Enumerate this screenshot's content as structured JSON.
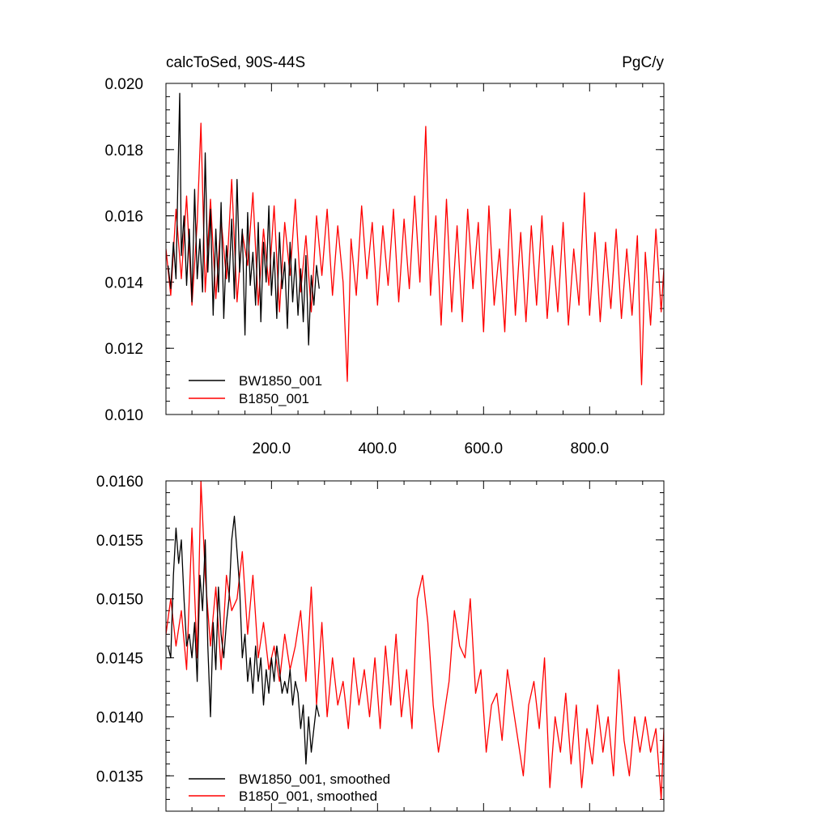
{
  "chart_data": [
    {
      "type": "line",
      "title": "calcToSed, 90S-44S",
      "units": "PgC/y",
      "xlim": [
        1,
        940
      ],
      "ylim": [
        0.01,
        0.02
      ],
      "xticks": [
        200,
        400,
        600,
        800
      ],
      "xtick_labels": [
        "200.0",
        "400.0",
        "600.0",
        "800.0"
      ],
      "yticks": [
        0.01,
        0.012,
        0.014,
        0.016,
        0.018,
        0.02
      ],
      "ytick_labels": [
        "0.010",
        "0.012",
        "0.014",
        "0.016",
        "0.018",
        "0.020"
      ],
      "legend_position": "bottom-left",
      "series": [
        {
          "name": "BW1850_001",
          "color": "#000000",
          "x": [
            5,
            10,
            15,
            20,
            24,
            27,
            30,
            35,
            40,
            45,
            50,
            55,
            60,
            65,
            70,
            75,
            80,
            85,
            90,
            95,
            100,
            105,
            110,
            115,
            120,
            125,
            130,
            135,
            140,
            145,
            150,
            155,
            160,
            165,
            170,
            175,
            180,
            185,
            190,
            195,
            200,
            205,
            210,
            215,
            220,
            225,
            230,
            235,
            240,
            245,
            250,
            255,
            260,
            265,
            270,
            275,
            280,
            285,
            290
          ],
          "values": [
            0.0145,
            0.0138,
            0.0152,
            0.0141,
            0.0175,
            0.0197,
            0.0148,
            0.016,
            0.0139,
            0.0156,
            0.0134,
            0.0168,
            0.0141,
            0.0153,
            0.0137,
            0.0179,
            0.0143,
            0.0162,
            0.013,
            0.0156,
            0.0137,
            0.0164,
            0.0129,
            0.0151,
            0.014,
            0.0159,
            0.0135,
            0.0171,
            0.0143,
            0.0156,
            0.0124,
            0.0161,
            0.0139,
            0.0149,
            0.0133,
            0.0158,
            0.0128,
            0.0152,
            0.014,
            0.0163,
            0.0136,
            0.0149,
            0.0129,
            0.0155,
            0.0138,
            0.0146,
            0.0126,
            0.0152,
            0.0134,
            0.0147,
            0.013,
            0.0144,
            0.0128,
            0.0148,
            0.0121,
            0.0142,
            0.0133,
            0.0145,
            0.0138
          ]
        },
        {
          "name": "B1850_001",
          "color": "#ff0000",
          "x": [
            1,
            10,
            20,
            30,
            40,
            50,
            60,
            67,
            75,
            85,
            95,
            105,
            115,
            125,
            135,
            145,
            155,
            165,
            175,
            185,
            195,
            205,
            215,
            225,
            235,
            245,
            255,
            265,
            275,
            285,
            295,
            305,
            315,
            325,
            335,
            343,
            350,
            360,
            370,
            380,
            390,
            400,
            410,
            420,
            430,
            440,
            450,
            460,
            470,
            480,
            491,
            500,
            510,
            520,
            530,
            540,
            550,
            560,
            570,
            580,
            590,
            600,
            610,
            620,
            630,
            640,
            650,
            660,
            670,
            680,
            690,
            700,
            710,
            720,
            730,
            740,
            750,
            760,
            770,
            780,
            790,
            800,
            810,
            820,
            830,
            840,
            850,
            860,
            870,
            880,
            890,
            898,
            905,
            915,
            925,
            935,
            940
          ],
          "values": [
            0.015,
            0.0136,
            0.0162,
            0.0141,
            0.0166,
            0.0133,
            0.0158,
            0.0188,
            0.0137,
            0.0165,
            0.0135,
            0.0159,
            0.0141,
            0.0171,
            0.0134,
            0.0155,
            0.0145,
            0.0167,
            0.0133,
            0.0156,
            0.0139,
            0.0163,
            0.0131,
            0.0158,
            0.0142,
            0.0165,
            0.0137,
            0.0154,
            0.0131,
            0.016,
            0.0142,
            0.0162,
            0.0136,
            0.0157,
            0.014,
            0.011,
            0.0153,
            0.0136,
            0.0163,
            0.0141,
            0.0158,
            0.0133,
            0.0157,
            0.0139,
            0.0162,
            0.0134,
            0.0159,
            0.0138,
            0.0166,
            0.014,
            0.0187,
            0.0136,
            0.016,
            0.0127,
            0.0165,
            0.0131,
            0.0157,
            0.0128,
            0.0162,
            0.0138,
            0.0158,
            0.0125,
            0.0163,
            0.0133,
            0.015,
            0.0125,
            0.0162,
            0.013,
            0.0155,
            0.0128,
            0.0157,
            0.0133,
            0.016,
            0.0129,
            0.0151,
            0.0131,
            0.0158,
            0.0127,
            0.015,
            0.0133,
            0.0167,
            0.013,
            0.0155,
            0.0128,
            0.0152,
            0.0132,
            0.0156,
            0.0129,
            0.015,
            0.013,
            0.0154,
            0.0109,
            0.0149,
            0.0127,
            0.0156,
            0.0131,
            0.0144
          ]
        }
      ]
    },
    {
      "type": "line",
      "xlim": [
        1,
        940
      ],
      "ylim": [
        0.0132,
        0.016
      ],
      "xticks": [
        200,
        400,
        600,
        800
      ],
      "yticks": [
        0.0135,
        0.014,
        0.0145,
        0.015,
        0.0155,
        0.016
      ],
      "ytick_labels": [
        "0.0135",
        "0.0140",
        "0.0145",
        "0.0150",
        "0.0155",
        "0.0160"
      ],
      "legend_position": "bottom-left",
      "series": [
        {
          "name": "BW1850_001, smoothed",
          "color": "#000000",
          "x": [
            5,
            10,
            15,
            20,
            25,
            30,
            35,
            40,
            45,
            50,
            55,
            60,
            65,
            70,
            75,
            80,
            85,
            90,
            95,
            100,
            105,
            110,
            115,
            120,
            125,
            130,
            135,
            140,
            145,
            150,
            155,
            160,
            165,
            170,
            175,
            180,
            185,
            190,
            195,
            200,
            205,
            210,
            215,
            220,
            225,
            230,
            235,
            240,
            245,
            250,
            255,
            260,
            265,
            270,
            275,
            280,
            285,
            290
          ],
          "values": [
            0.0146,
            0.0145,
            0.0152,
            0.0156,
            0.0153,
            0.0155,
            0.015,
            0.0146,
            0.0147,
            0.0145,
            0.0148,
            0.0143,
            0.0152,
            0.0149,
            0.0155,
            0.0146,
            0.014,
            0.0148,
            0.0144,
            0.0151,
            0.0147,
            0.0145,
            0.0148,
            0.015,
            0.0155,
            0.0157,
            0.0154,
            0.0151,
            0.0145,
            0.0147,
            0.0143,
            0.0145,
            0.0142,
            0.0146,
            0.0143,
            0.0145,
            0.0141,
            0.0144,
            0.0142,
            0.0145,
            0.0143,
            0.0146,
            0.0144,
            0.0142,
            0.0143,
            0.0142,
            0.0144,
            0.0141,
            0.0143,
            0.0142,
            0.0139,
            0.0141,
            0.0136,
            0.014,
            0.0137,
            0.0139,
            0.0141,
            0.014
          ]
        },
        {
          "name": "B1850_001, smoothed",
          "color": "#ff0000",
          "x": [
            1,
            10,
            20,
            30,
            40,
            50,
            60,
            67,
            75,
            85,
            95,
            105,
            115,
            125,
            135,
            145,
            155,
            165,
            175,
            185,
            195,
            205,
            215,
            225,
            235,
            245,
            255,
            265,
            275,
            285,
            295,
            305,
            315,
            325,
            335,
            345,
            355,
            365,
            375,
            385,
            395,
            405,
            415,
            425,
            435,
            445,
            455,
            465,
            475,
            485,
            495,
            505,
            515,
            525,
            535,
            545,
            555,
            565,
            575,
            585,
            595,
            605,
            615,
            625,
            635,
            645,
            655,
            665,
            675,
            685,
            695,
            705,
            715,
            725,
            735,
            745,
            755,
            765,
            775,
            785,
            795,
            805,
            815,
            825,
            835,
            845,
            855,
            865,
            875,
            885,
            895,
            905,
            915,
            925,
            935,
            940
          ],
          "values": [
            0.0147,
            0.015,
            0.0146,
            0.0149,
            0.0144,
            0.0156,
            0.0145,
            0.016,
            0.0152,
            0.0146,
            0.0151,
            0.0144,
            0.0152,
            0.0149,
            0.015,
            0.0154,
            0.0147,
            0.0152,
            0.0145,
            0.0148,
            0.0144,
            0.0146,
            0.0143,
            0.0147,
            0.0144,
            0.0146,
            0.0149,
            0.0143,
            0.0151,
            0.0141,
            0.0148,
            0.014,
            0.0145,
            0.0141,
            0.0143,
            0.0139,
            0.0145,
            0.0141,
            0.0144,
            0.014,
            0.0145,
            0.0139,
            0.0146,
            0.0141,
            0.0147,
            0.014,
            0.0144,
            0.0139,
            0.015,
            0.0152,
            0.0148,
            0.0141,
            0.0137,
            0.014,
            0.0143,
            0.0149,
            0.0146,
            0.0145,
            0.015,
            0.0142,
            0.0144,
            0.0137,
            0.0141,
            0.0142,
            0.0138,
            0.0144,
            0.0141,
            0.0138,
            0.0135,
            0.0141,
            0.0143,
            0.0139,
            0.0145,
            0.0134,
            0.014,
            0.0137,
            0.0142,
            0.0136,
            0.0141,
            0.0134,
            0.0139,
            0.0136,
            0.0141,
            0.0137,
            0.014,
            0.0135,
            0.0144,
            0.0138,
            0.0135,
            0.014,
            0.0137,
            0.014,
            0.0137,
            0.0139,
            0.0133,
            0.0139
          ]
        }
      ]
    }
  ]
}
